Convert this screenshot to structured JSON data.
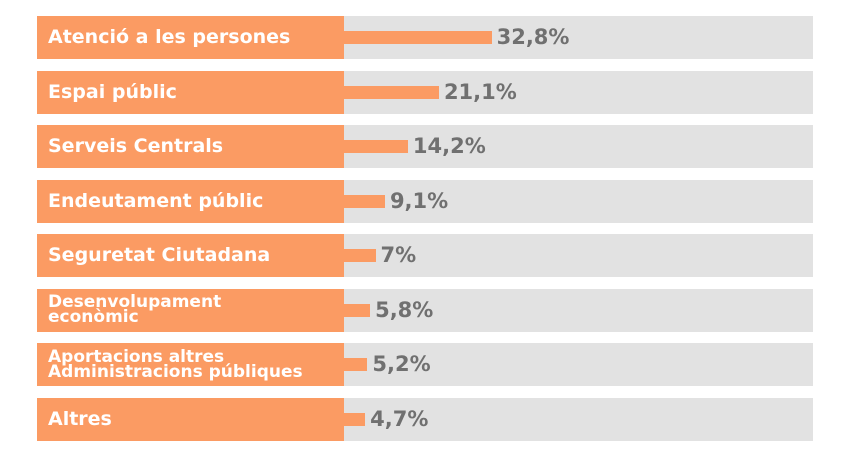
{
  "chart_data": {
    "type": "bar",
    "orientation": "horizontal",
    "categories": [
      "Atenció a les persones",
      "Espai públic",
      "Serveis Centrals",
      "Endeutament públic",
      "Seguretat Ciutadana",
      "Desenvolupament\neconòmic",
      "Aportacions altres\nAdministracions públiques",
      "Altres"
    ],
    "values": [
      32.8,
      21.1,
      14.2,
      9.1,
      7,
      5.8,
      5.2,
      4.7
    ],
    "value_labels": [
      "32,8%",
      "21,1%",
      "14,2%",
      "9,1%",
      "7%",
      "5,8%",
      "5,2%",
      "4,7%"
    ],
    "unit": "%",
    "title": "",
    "xlabel": "",
    "ylabel": "",
    "grid": false,
    "colors": {
      "label_background": "#fb9b63",
      "bar": "#fb9b63",
      "track": "#e2e2e2",
      "label_text": "#ffffff",
      "value_text": "#707070"
    }
  }
}
